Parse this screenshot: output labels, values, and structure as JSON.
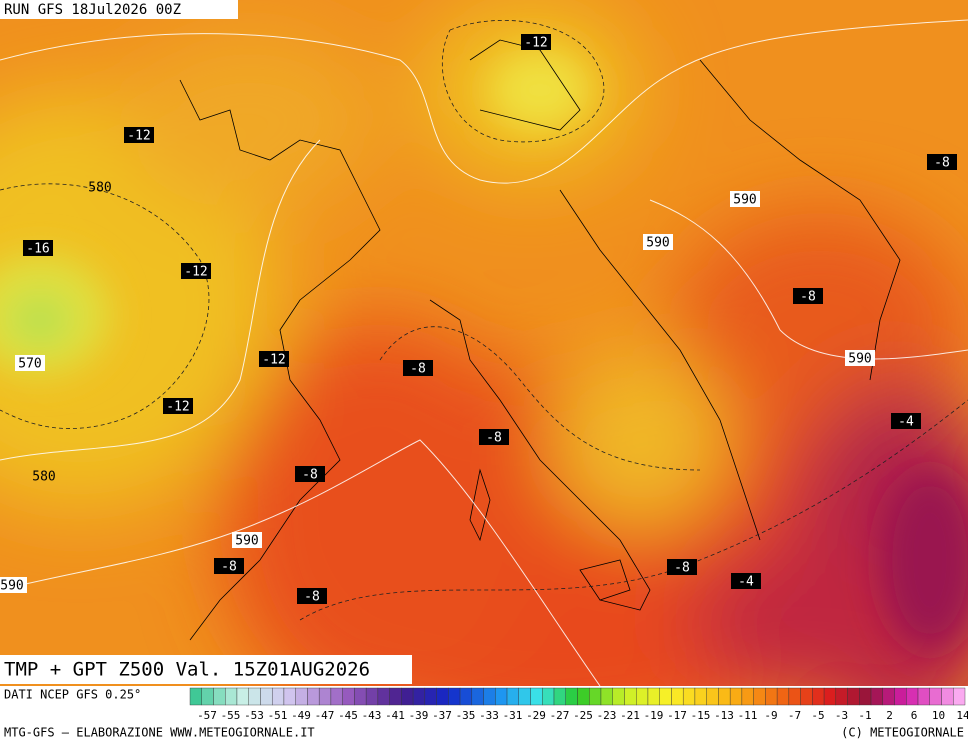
{
  "header": {
    "run": "RUN GFS 18Jul2026 00Z"
  },
  "map": {
    "labels": [
      "-12",
      "-12",
      "580",
      "-16",
      "-12",
      "570",
      "-12",
      "-12",
      "580",
      "590",
      "590",
      "-8",
      "-8",
      "590",
      "-8",
      "-4",
      "-8",
      "-8",
      "590",
      "-8",
      "590",
      "-8",
      "-8",
      "-4"
    ]
  },
  "caption": "TMP + GPT Z500 Val. 15Z01AUG2026",
  "footer": {
    "source": "DATI NCEP GFS 0.25°",
    "scale": [
      "-57",
      "-55",
      "-53",
      "-51",
      "-49",
      "-47",
      "-45",
      "-43",
      "-41",
      "-39",
      "-37",
      "-35",
      "-33",
      "-31",
      "-29",
      "-27",
      "-25",
      "-23",
      "-21",
      "-19",
      "-17",
      "-15",
      "-13",
      "-11",
      "-9",
      "-7",
      "-5",
      "-3",
      "-1",
      "2",
      "6",
      "10",
      "14"
    ],
    "credit_left": "MTG-GFS — ELABORAZIONE WWW.METEOGIORNALE.IT",
    "credit_right": "(C) METEOGIORNALE"
  }
}
